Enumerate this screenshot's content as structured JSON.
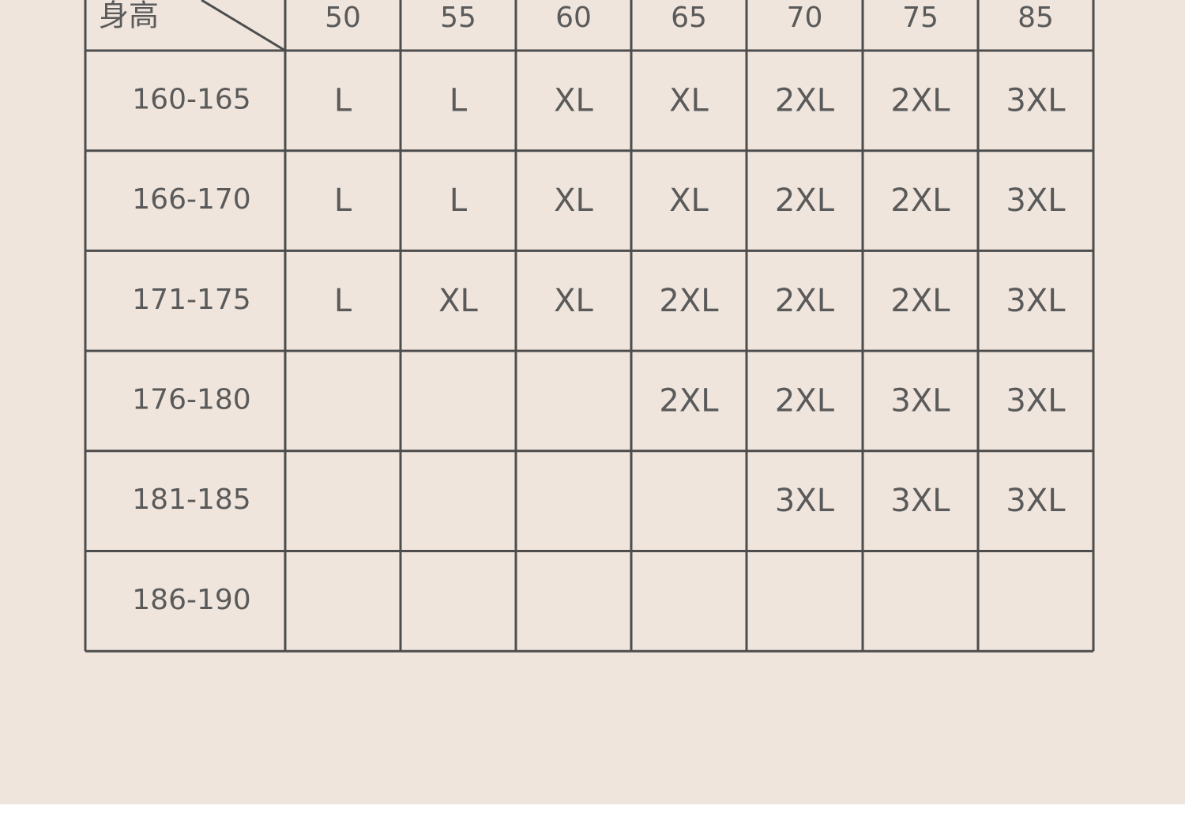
{
  "table": {
    "corner": "身高",
    "columns": [
      50,
      55,
      60,
      65,
      70,
      75,
      85
    ],
    "rows": [
      {
        "label": "160-165",
        "cells": [
          "L",
          "L",
          "XL",
          "XL",
          "2XL",
          "2XL",
          "3XL"
        ]
      },
      {
        "label": "166-170",
        "cells": [
          "L",
          "L",
          "XL",
          "XL",
          "2XL",
          "2XL",
          "3XL"
        ]
      },
      {
        "label": "171-175",
        "cells": [
          "L",
          "XL",
          "XL",
          "2XL",
          "2XL",
          "2XL",
          "3XL"
        ]
      },
      {
        "label": "176-180",
        "cells": [
          null,
          null,
          null,
          "2XL",
          "2XL",
          "3XL",
          "3XL"
        ]
      },
      {
        "label": "181-185",
        "cells": [
          null,
          null,
          null,
          null,
          "3XL",
          "3XL",
          "3XL"
        ]
      },
      {
        "label": "186-190",
        "cells": [
          null,
          null,
          null,
          null,
          null,
          null,
          null
        ]
      }
    ]
  }
}
